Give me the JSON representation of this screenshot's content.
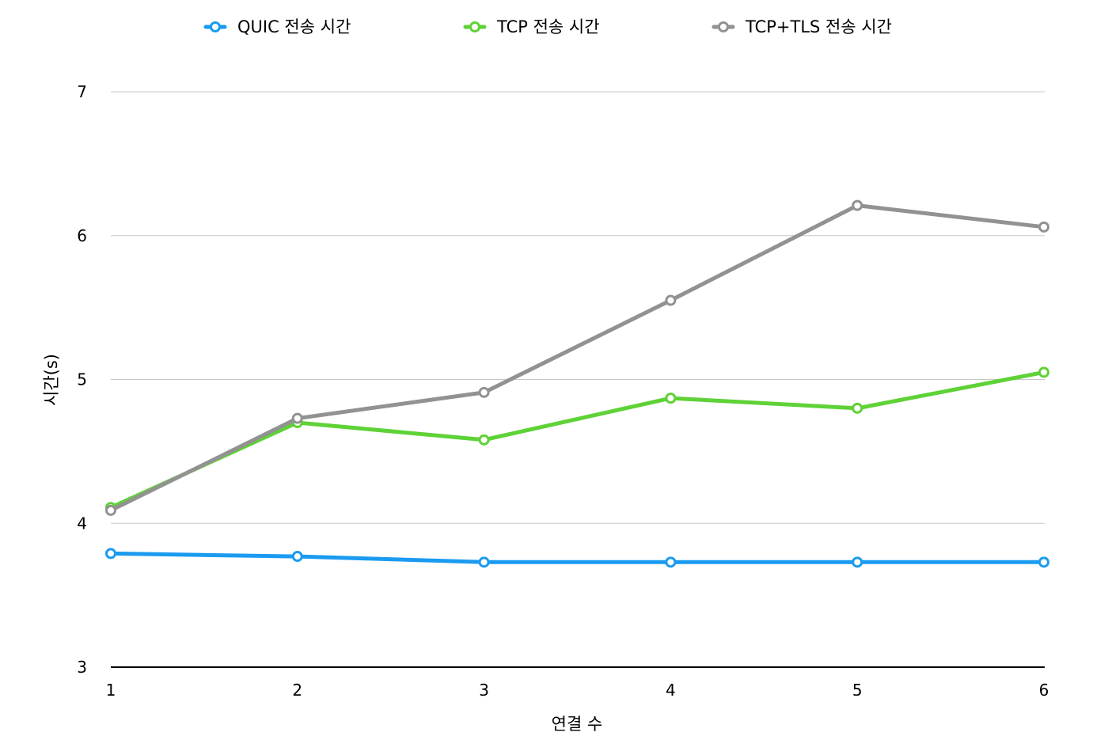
{
  "chart_data": {
    "type": "line",
    "title": "",
    "xlabel": "연결 수",
    "ylabel": "시간(s)",
    "categories": [
      "1",
      "2",
      "3",
      "4",
      "5",
      "6"
    ],
    "ylim": [
      3,
      7
    ],
    "yticks": [
      "3",
      "4",
      "5",
      "6",
      "7"
    ],
    "grid": true,
    "legend_position": "top",
    "series": [
      {
        "name": "QUIC 전송 시간",
        "color": "#1a9bf0",
        "values": [
          3.79,
          3.77,
          3.73,
          3.73,
          3.73,
          3.73
        ]
      },
      {
        "name": "TCP 전송 시간",
        "color": "#5ed236",
        "values": [
          4.11,
          4.7,
          4.58,
          4.87,
          4.8,
          5.05
        ]
      },
      {
        "name": "TCP+TLS 전송 시간",
        "color": "#929292",
        "values": [
          4.09,
          4.73,
          4.91,
          5.55,
          6.21,
          6.06
        ]
      }
    ]
  }
}
